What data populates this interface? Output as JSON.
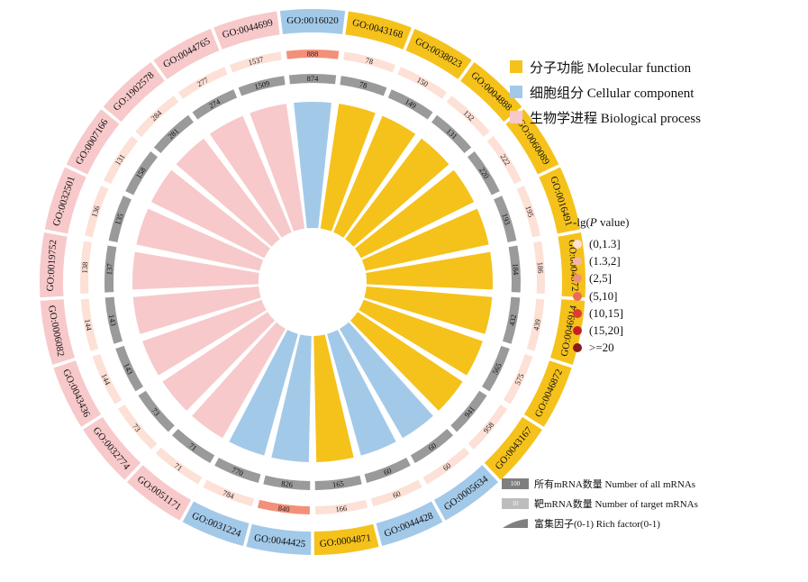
{
  "chart_data": {
    "type": "circular-go-enrichment",
    "categories": [
      {
        "key": "MF",
        "label": "分子功能  Molecular function",
        "color": "#f5c21b"
      },
      {
        "key": "CC",
        "label": "细胞组分  Cellular component",
        "color": "#a3c9e9"
      },
      {
        "key": "BP",
        "label": "生物学进程  Biological process",
        "color": "#f7c9cb"
      }
    ],
    "terms": [
      {
        "id": "GO:0016020",
        "cat": "CC",
        "all": 874,
        "target": 888,
        "p_level": 2
      },
      {
        "id": "GO:0043168",
        "cat": "MF",
        "all": 78,
        "target": 78,
        "p_level": 0
      },
      {
        "id": "GO:0038023",
        "cat": "MF",
        "all": 149,
        "target": 150,
        "p_level": 0
      },
      {
        "id": "GO:0004888",
        "cat": "MF",
        "all": 131,
        "target": 132,
        "p_level": 0
      },
      {
        "id": "GO:0060089",
        "cat": "MF",
        "all": 220,
        "target": 222,
        "p_level": 0
      },
      {
        "id": "GO:0016491",
        "cat": "MF",
        "all": 193,
        "target": 195,
        "p_level": 0
      },
      {
        "id": "GO:0004872",
        "cat": "MF",
        "all": 184,
        "target": 186,
        "p_level": 0
      },
      {
        "id": "GO:0046914",
        "cat": "MF",
        "all": 432,
        "target": 439,
        "p_level": 0
      },
      {
        "id": "GO:0046872",
        "cat": "MF",
        "all": 565,
        "target": 575,
        "p_level": 0
      },
      {
        "id": "GO:0043167",
        "cat": "MF",
        "all": 941,
        "target": 958,
        "p_level": 0
      },
      {
        "id": "GO:0005634",
        "cat": "CC",
        "all": 60,
        "target": 60,
        "p_level": 0
      },
      {
        "id": "GO:0044428",
        "cat": "CC",
        "all": 60,
        "target": 60,
        "p_level": 0
      },
      {
        "id": "GO:0004871",
        "cat": "MF",
        "all": 165,
        "target": 166,
        "p_level": 0
      },
      {
        "id": "GO:0044425",
        "cat": "CC",
        "all": 826,
        "target": 840,
        "p_level": 2
      },
      {
        "id": "GO:0031224",
        "cat": "CC",
        "all": 770,
        "target": 784,
        "p_level": 0
      },
      {
        "id": "GO:0051171",
        "cat": "BP",
        "all": 71,
        "target": 71,
        "p_level": 0
      },
      {
        "id": "GO:0032774",
        "cat": "BP",
        "all": 73,
        "target": 73,
        "p_level": 0
      },
      {
        "id": "GO:0043436",
        "cat": "BP",
        "all": 143,
        "target": 144,
        "p_level": 0
      },
      {
        "id": "GO:0006082",
        "cat": "BP",
        "all": 143,
        "target": 144,
        "p_level": 0
      },
      {
        "id": "GO:0019752",
        "cat": "BP",
        "all": 137,
        "target": 138,
        "p_level": 0
      },
      {
        "id": "GO:0032501",
        "cat": "BP",
        "all": 135,
        "target": 136,
        "p_level": 0
      },
      {
        "id": "GO:0007166",
        "cat": "BP",
        "all": 158,
        "target": 131,
        "p_level": 0
      },
      {
        "id": "GO:1902578",
        "cat": "BP",
        "all": 281,
        "target": 284,
        "p_level": 0
      },
      {
        "id": "GO:0044765",
        "cat": "BP",
        "all": 274,
        "target": 277,
        "p_level": 0
      },
      {
        "id": "GO:0044699",
        "cat": "BP",
        "all": 1509,
        "target": 1537,
        "p_level": 0
      }
    ],
    "rich_factor": [
      1,
      1,
      1,
      1,
      1,
      1,
      1,
      1,
      1,
      1,
      1,
      1,
      1,
      1,
      1,
      1,
      1,
      1,
      1,
      1,
      1,
      1,
      1,
      1,
      1
    ],
    "rich_factor_range": [
      0,
      1
    ],
    "p_legend": {
      "title_pre": "-lg(",
      "title_italic": "P",
      "title_post": " value)",
      "levels": [
        {
          "label": "(0,1.3]",
          "color": "#fde0d6"
        },
        {
          "label": "(1.3,2]",
          "color": "#f8b6a2"
        },
        {
          "label": "(2,5]",
          "color": "#f3907a"
        },
        {
          "label": "(5,10]",
          "color": "#ec6a56"
        },
        {
          "label": "(10,15]",
          "color": "#e03a33"
        },
        {
          "label": "(15,20]",
          "color": "#c81f25"
        },
        {
          "label": ">=20",
          "color": "#8b1a1a"
        }
      ]
    },
    "bottom_legend": [
      {
        "swatch_text": "100",
        "label": "所有mRNA数量  Number of all mRNAs",
        "color": "#7f7f7f"
      },
      {
        "swatch_text": "10",
        "label": "靶mRNA数量  Number of  target mRNAs",
        "color": "#bdbdbd"
      },
      {
        "swatch_text": "",
        "label": "富集因子(0-1)  Rich factor(0-1)",
        "color": "#7f7f7f"
      }
    ],
    "colors": {
      "all_box": "#9a9a9a",
      "ring_outer_gap": "#ffffff"
    }
  }
}
